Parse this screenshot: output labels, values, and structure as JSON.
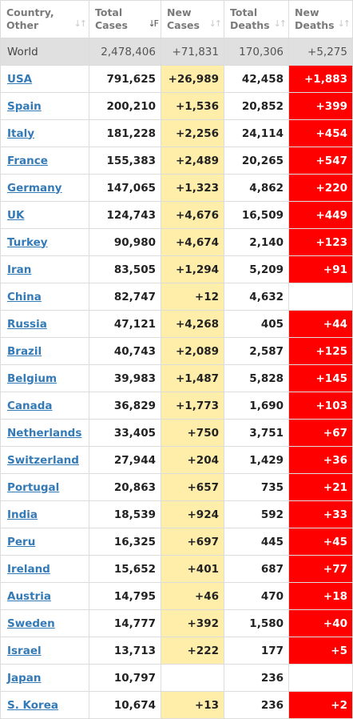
{
  "headers": [
    {
      "label_line1": "Country,",
      "label_line2": "Other",
      "sort_icon": "sort-arrows-icon",
      "active": false
    },
    {
      "label_line1": "Total",
      "label_line2": "Cases",
      "sort_icon": "sort-descending-icon",
      "active": true
    },
    {
      "label_line1": "New",
      "label_line2": "Cases",
      "sort_icon": "sort-arrows-icon",
      "active": false
    },
    {
      "label_line1": "Total",
      "label_line2": "Deaths",
      "sort_icon": "sort-arrows-icon",
      "active": false
    },
    {
      "label_line1": "New",
      "label_line2": "Deaths",
      "sort_icon": "sort-arrows-icon",
      "active": false
    }
  ],
  "world": {
    "country": "World",
    "total_cases": "2,478,406",
    "new_cases": "+71,831",
    "total_deaths": "170,306",
    "new_deaths": "+5,275"
  },
  "rows": [
    {
      "country": "USA",
      "total_cases": "791,625",
      "new_cases": "+26,989",
      "total_deaths": "42,458",
      "new_deaths": "+1,883"
    },
    {
      "country": "Spain",
      "total_cases": "200,210",
      "new_cases": "+1,536",
      "total_deaths": "20,852",
      "new_deaths": "+399"
    },
    {
      "country": "Italy",
      "total_cases": "181,228",
      "new_cases": "+2,256",
      "total_deaths": "24,114",
      "new_deaths": "+454"
    },
    {
      "country": "France",
      "total_cases": "155,383",
      "new_cases": "+2,489",
      "total_deaths": "20,265",
      "new_deaths": "+547"
    },
    {
      "country": "Germany",
      "total_cases": "147,065",
      "new_cases": "+1,323",
      "total_deaths": "4,862",
      "new_deaths": "+220"
    },
    {
      "country": "UK",
      "total_cases": "124,743",
      "new_cases": "+4,676",
      "total_deaths": "16,509",
      "new_deaths": "+449"
    },
    {
      "country": "Turkey",
      "total_cases": "90,980",
      "new_cases": "+4,674",
      "total_deaths": "2,140",
      "new_deaths": "+123"
    },
    {
      "country": "Iran",
      "total_cases": "83,505",
      "new_cases": "+1,294",
      "total_deaths": "5,209",
      "new_deaths": "+91"
    },
    {
      "country": "China",
      "total_cases": "82,747",
      "new_cases": "+12",
      "total_deaths": "4,632",
      "new_deaths": ""
    },
    {
      "country": "Russia",
      "total_cases": "47,121",
      "new_cases": "+4,268",
      "total_deaths": "405",
      "new_deaths": "+44"
    },
    {
      "country": "Brazil",
      "total_cases": "40,743",
      "new_cases": "+2,089",
      "total_deaths": "2,587",
      "new_deaths": "+125"
    },
    {
      "country": "Belgium",
      "total_cases": "39,983",
      "new_cases": "+1,487",
      "total_deaths": "5,828",
      "new_deaths": "+145"
    },
    {
      "country": "Canada",
      "total_cases": "36,829",
      "new_cases": "+1,773",
      "total_deaths": "1,690",
      "new_deaths": "+103"
    },
    {
      "country": "Netherlands",
      "total_cases": "33,405",
      "new_cases": "+750",
      "total_deaths": "3,751",
      "new_deaths": "+67"
    },
    {
      "country": "Switzerland",
      "total_cases": "27,944",
      "new_cases": "+204",
      "total_deaths": "1,429",
      "new_deaths": "+36"
    },
    {
      "country": "Portugal",
      "total_cases": "20,863",
      "new_cases": "+657",
      "total_deaths": "735",
      "new_deaths": "+21"
    },
    {
      "country": "India",
      "total_cases": "18,539",
      "new_cases": "+924",
      "total_deaths": "592",
      "new_deaths": "+33"
    },
    {
      "country": "Peru",
      "total_cases": "16,325",
      "new_cases": "+697",
      "total_deaths": "445",
      "new_deaths": "+45"
    },
    {
      "country": "Ireland",
      "total_cases": "15,652",
      "new_cases": "+401",
      "total_deaths": "687",
      "new_deaths": "+77"
    },
    {
      "country": "Austria",
      "total_cases": "14,795",
      "new_cases": "+46",
      "total_deaths": "470",
      "new_deaths": "+18"
    },
    {
      "country": "Sweden",
      "total_cases": "14,777",
      "new_cases": "+392",
      "total_deaths": "1,580",
      "new_deaths": "+40"
    },
    {
      "country": "Israel",
      "total_cases": "13,713",
      "new_cases": "+222",
      "total_deaths": "177",
      "new_deaths": "+5"
    },
    {
      "country": "Japan",
      "total_cases": "10,797",
      "new_cases": "",
      "total_deaths": "236",
      "new_deaths": ""
    },
    {
      "country": "S. Korea",
      "total_cases": "10,674",
      "new_cases": "+13",
      "total_deaths": "236",
      "new_deaths": "+2"
    }
  ],
  "colors": {
    "new_cases_bg": "#ffeeaa",
    "new_deaths_bg": "#ff0000",
    "world_row_bg": "#e0e0e0",
    "link": "#337ab7"
  }
}
